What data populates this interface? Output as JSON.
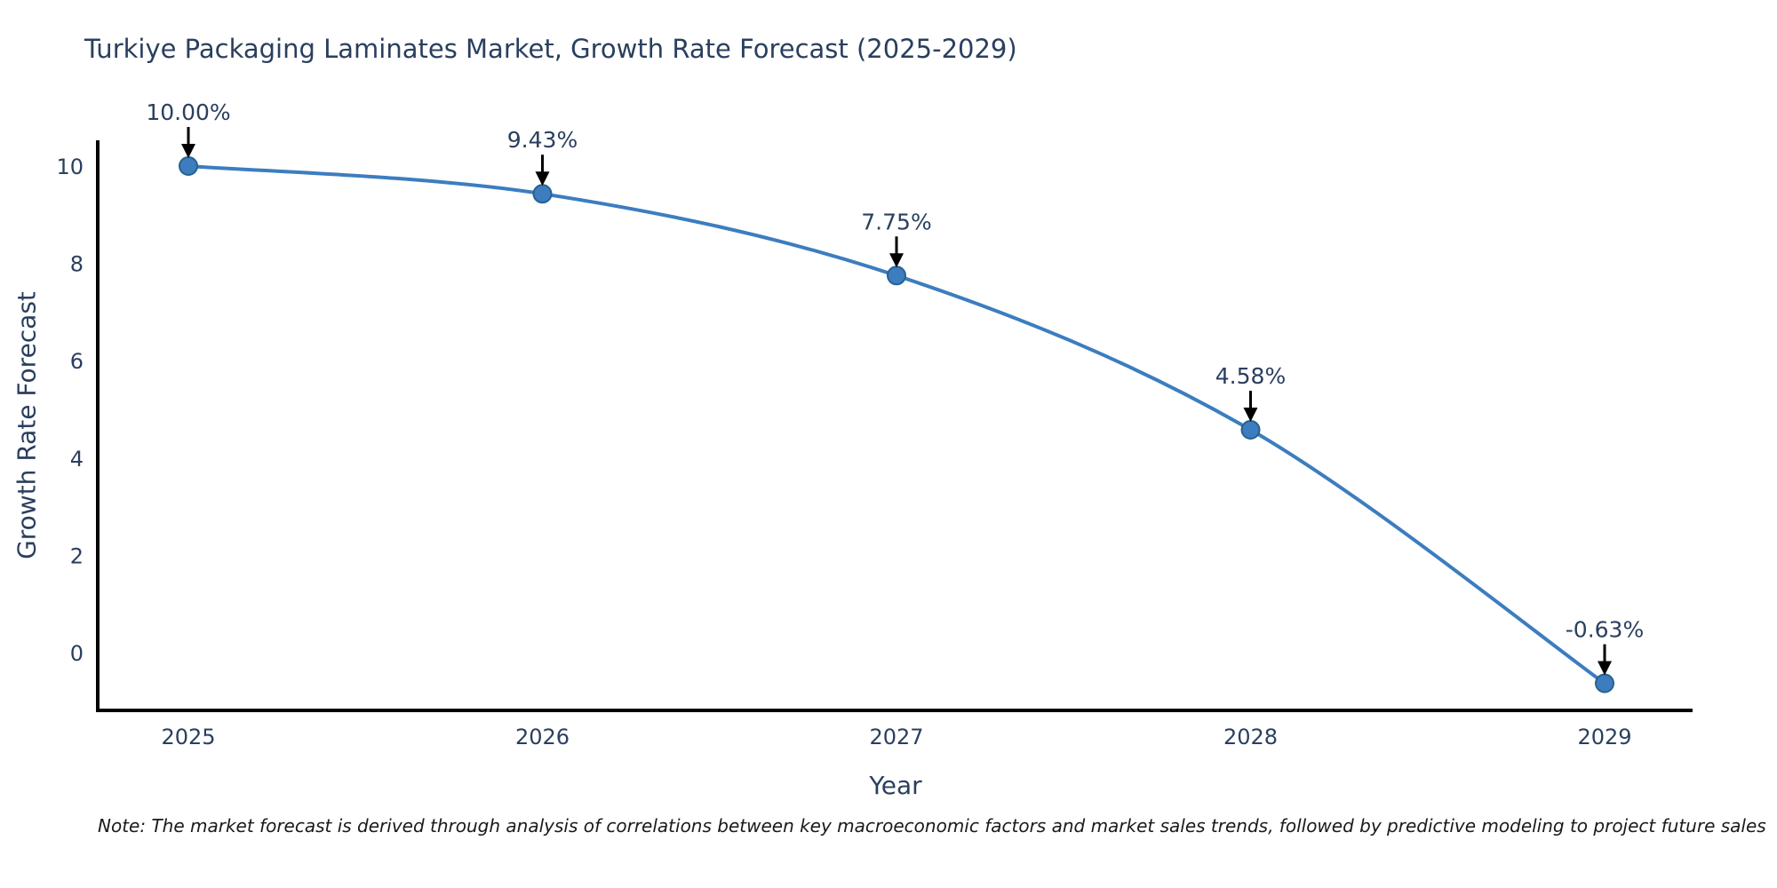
{
  "title": "Turkiye Packaging Laminates Market, Growth Rate Forecast (2025-2029)",
  "note": "Note: The market forecast is derived through analysis of correlations between key macroeconomic factors and market sales trends, followed by predictive modeling to project future sales",
  "chart_data": {
    "type": "line",
    "title": "Turkiye Packaging Laminates Market, Growth Rate Forecast (2025-2029)",
    "xlabel": "Year",
    "ylabel": "Growth Rate Forecast",
    "x": [
      2025,
      2026,
      2027,
      2028,
      2029
    ],
    "values": [
      10.0,
      9.43,
      7.75,
      4.58,
      -0.63
    ],
    "point_labels": [
      "10.00%",
      "9.43%",
      "7.75%",
      "4.58%",
      "-0.63%"
    ],
    "yticks": [
      0,
      2,
      4,
      6,
      8,
      10
    ],
    "ylim": [
      -1.2,
      10.55
    ],
    "xlim": [
      2024.74,
      2029.25
    ],
    "grid": false,
    "legend": "none",
    "line_color": "#3c7dbf",
    "marker_color": "#3c7dbf",
    "marker_edge_color": "#28618f",
    "axis_color": "#000000",
    "text_color": "#2a3f5f",
    "annotation_color": "#2a3f5f",
    "arrow_color": "#000000"
  }
}
